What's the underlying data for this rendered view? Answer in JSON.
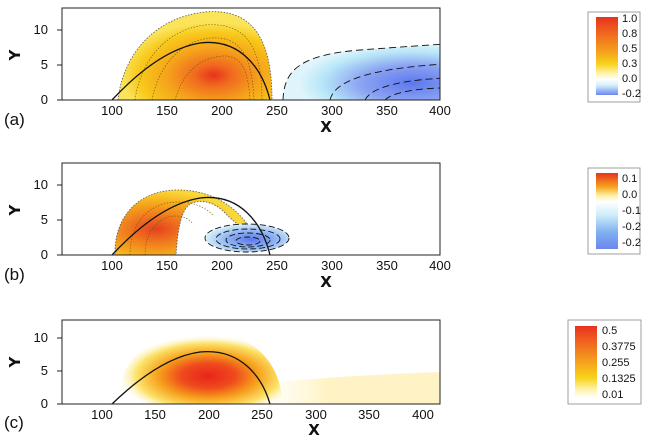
{
  "chart_data": [
    {
      "type": "heatmap",
      "panel_label": "(a)",
      "xlabel": "X",
      "ylabel": "Y",
      "xlim": [
        62,
        440
      ],
      "ylim": [
        0,
        12.5
      ],
      "xticks": [
        "100",
        "150",
        "200",
        "250",
        "300",
        "350",
        "400"
      ],
      "yticks": [
        "0",
        "5",
        "10"
      ],
      "colorbar": {
        "labels": [
          "1.0",
          "0.8",
          "0.5",
          "0.3",
          "0.0",
          "-0.2"
        ],
        "colors": [
          "#e8321f",
          "#f06a1e",
          "#f5a21c",
          "#f8d21a",
          "#fff2a8",
          "#ffffff",
          "#cfeefa",
          "#6c86ee"
        ]
      },
      "positive_lobe": {
        "x_range": [
          118,
          272
        ],
        "y_peak": 12.2,
        "max_value": 1.0,
        "max_at": [
          235,
          3
        ]
      },
      "negative_lobe": {
        "x_range": [
          283,
          440
        ],
        "y_max": 8,
        "min_value": -0.2,
        "min_at": [
          400,
          2.5
        ]
      },
      "boundary_curve": {
        "x": [
          112,
          150,
          195,
          240,
          268
        ],
        "y": [
          0,
          5.5,
          8,
          6.2,
          0
        ]
      }
    },
    {
      "type": "heatmap",
      "panel_label": "(b)",
      "xlabel": "X",
      "ylabel": "Y",
      "xlim": [
        62,
        440
      ],
      "ylim": [
        0,
        12.5
      ],
      "xticks": [
        "100",
        "150",
        "200",
        "250",
        "300",
        "350",
        "400"
      ],
      "yticks": [
        "0",
        "5",
        "10"
      ],
      "colorbar": {
        "labels": [
          "0.1",
          "0.0",
          "-0.1",
          "-0.2",
          "-0.2"
        ],
        "colors": [
          "#e8321f",
          "#f5a21c",
          "#fff2a8",
          "#ffffff",
          "#cfeefa",
          "#7fb0f0",
          "#6c86ee"
        ]
      },
      "positive_lobe": {
        "x_range": [
          115,
          252
        ],
        "y_peak": 8.2,
        "max_value": 0.1,
        "max_at": [
          158,
          4
        ]
      },
      "negative_lobe": {
        "x_range": [
          205,
          270
        ],
        "y_max": 4.2,
        "min_value": -0.2,
        "min_at": [
          245,
          1.8
        ]
      },
      "boundary_curve": {
        "x": [
          112,
          150,
          195,
          240,
          268
        ],
        "y": [
          0,
          5.5,
          8,
          6.2,
          0
        ]
      }
    },
    {
      "type": "heatmap",
      "panel_label": "(c)",
      "xlabel": "X",
      "ylabel": "Y",
      "xlim": [
        62,
        440
      ],
      "ylim": [
        0,
        12.5
      ],
      "xticks": [
        "100",
        "150",
        "200",
        "250",
        "300",
        "350",
        "400"
      ],
      "yticks": [
        "0",
        "5",
        "10"
      ],
      "colorbar": {
        "labels": [
          "0.5",
          "0.3775",
          "0.255",
          "0.1325",
          "0.01"
        ],
        "colors": [
          "#e8321f",
          "#f06a1e",
          "#f5a21c",
          "#f8d21a",
          "#fff2a8",
          "#ffffff"
        ]
      },
      "positive_lobe": {
        "x_range": [
          118,
          282
        ],
        "y_peak": 11,
        "max_value": 0.5,
        "max_at": [
          215,
          4.5
        ]
      },
      "boundary_curve": {
        "x": [
          112,
          150,
          195,
          240,
          268
        ],
        "y": [
          0,
          5.5,
          8,
          6.2,
          0
        ]
      }
    }
  ]
}
